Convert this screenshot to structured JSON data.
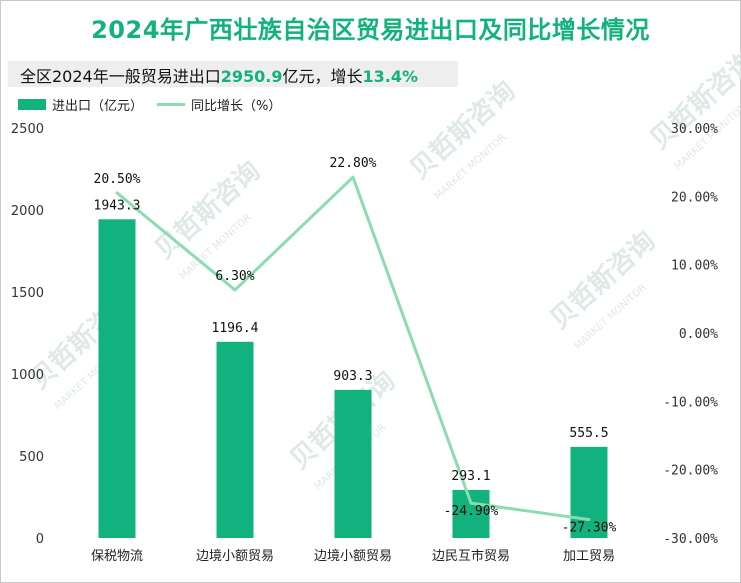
{
  "chart_data": {
    "type": "bar",
    "title": "2024年广西壮族自治区贸易进出口及同比增长情况",
    "subtitle": {
      "prefix": "全区2024年一般贸易进出口",
      "amount": "2950.9",
      "mid": "亿元，增长",
      "growth": "13.4%"
    },
    "categories": [
      "保税物流",
      "边境小额贸易",
      "边境小额贸易",
      "边民互市贸易",
      "加工贸易"
    ],
    "series": [
      {
        "name": "进出口（亿元）",
        "type": "bar",
        "axis": "left",
        "values": [
          1943.3,
          1196.4,
          903.3,
          293.1,
          555.5
        ],
        "labels": [
          "1943.3",
          "1196.4",
          "903.3",
          "293.1",
          "555.5"
        ]
      },
      {
        "name": "同比增长（%）",
        "type": "line",
        "axis": "right",
        "values": [
          20.5,
          6.3,
          22.8,
          -24.9,
          -27.3
        ],
        "labels": [
          "20.50%",
          "6.30%",
          "22.80%",
          "-24.90%",
          "-27.30%"
        ]
      }
    ],
    "y_left": {
      "min": 0,
      "max": 2500,
      "ticks": [
        0,
        500,
        1000,
        1500,
        2000,
        2500
      ]
    },
    "y_right": {
      "min": -30,
      "max": 30,
      "ticks": [
        30,
        20,
        10,
        0,
        -10,
        -20,
        -30
      ],
      "tick_labels": [
        "30.00%",
        "20.00%",
        "10.00%",
        "0.00%",
        "-10.00%",
        "-20.00%",
        "-30.00%"
      ]
    },
    "legend_position": "top-left",
    "colors": {
      "bar": "#12b27e",
      "line": "#8ddcb0",
      "title": "#12b27e"
    }
  },
  "watermark": {
    "cn": "贝哲斯咨询",
    "en": "MARKET MONITOR"
  }
}
